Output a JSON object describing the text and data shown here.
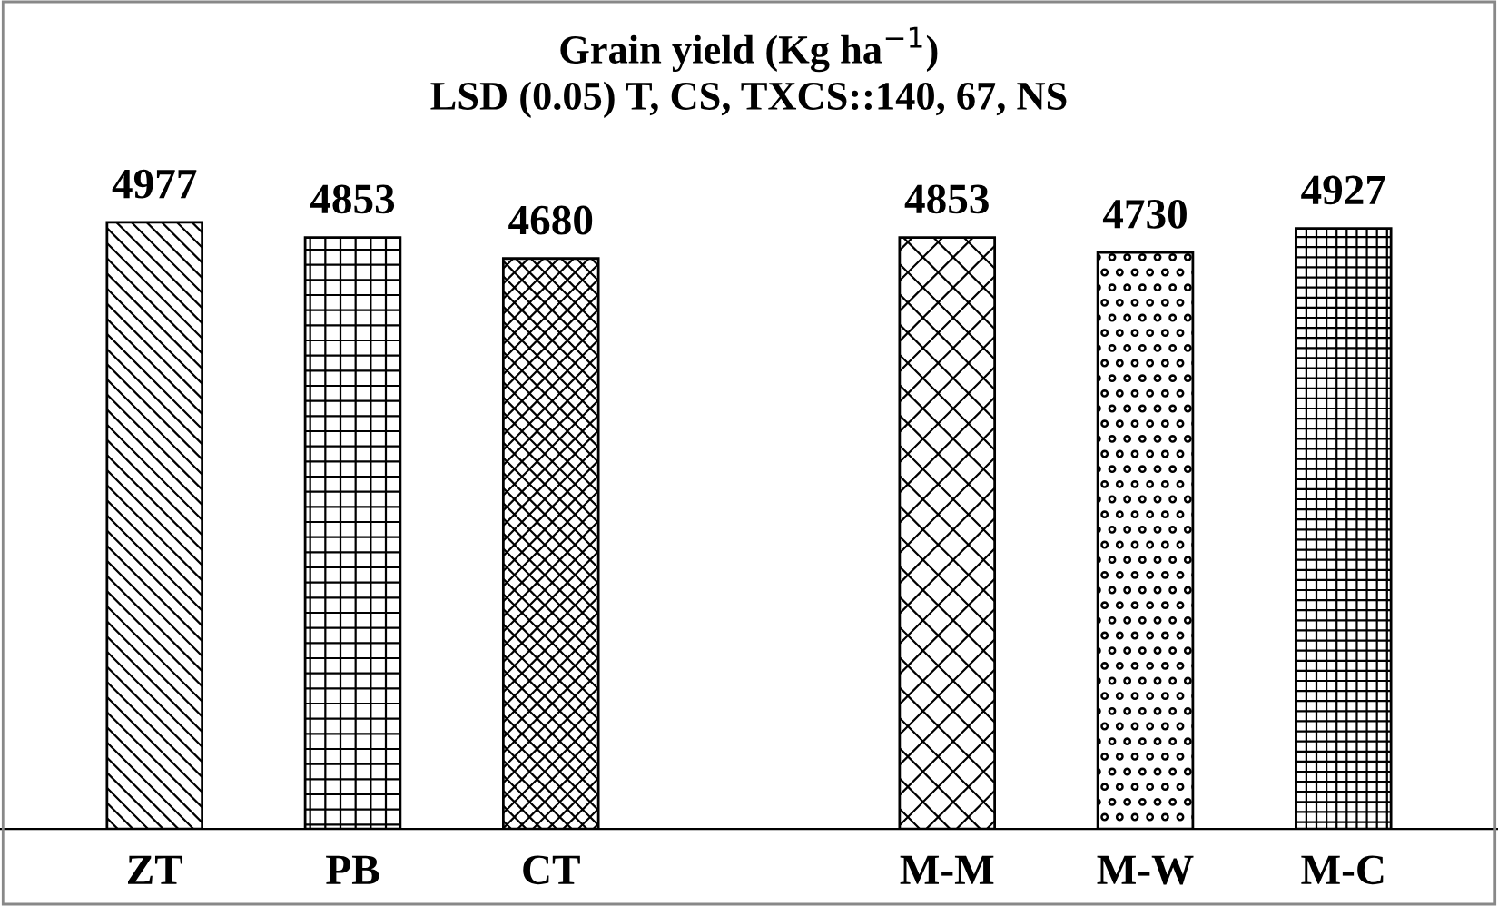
{
  "chart_data": {
    "type": "bar",
    "title": "Grain yield (Kg ha$^{−1}$)",
    "subtitle": "LSD (0.05) T, CS, TXCS::140, 67, NS",
    "categories": [
      "ZT",
      "PB",
      "CT",
      null,
      "M-M",
      "M-W",
      "M-C"
    ],
    "values": [
      4977,
      4853,
      4680,
      null,
      4853,
      4730,
      4927
    ],
    "colors": [
      "#000000",
      "#000000",
      "#000000",
      "#000000",
      "#000000",
      "#000000",
      "#000000"
    ],
    "data_labels": true,
    "grid": false,
    "legend": false
  }
}
